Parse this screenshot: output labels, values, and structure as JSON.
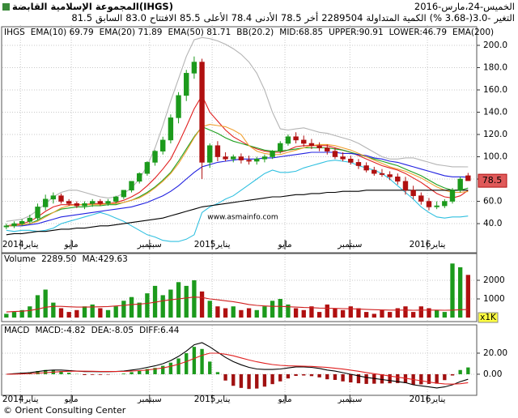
{
  "header": {
    "title": "المجموعة الإسلامية القابضة(IHGS)",
    "date": "الخميس-24،مارس-2016",
    "fields": [
      {
        "label": "التغير",
        "value": "-3.0(-3.68 %)"
      },
      {
        "label": "الكمية المتداولة",
        "value": "2289504"
      },
      {
        "label": "أخر",
        "value": "78.5"
      },
      {
        "label": "الأدنى",
        "value": "78.4"
      },
      {
        "label": "الأعلى",
        "value": "85.5"
      },
      {
        "label": "الافتتاح",
        "value": "83.0"
      },
      {
        "label": "السابق",
        "value": "81.5"
      }
    ]
  },
  "chart_data": [
    {
      "type": "candlestick",
      "watermark": "www.asmainfo.com",
      "grid": true,
      "up_color": "#1c9a1c",
      "down_color": "#b01010",
      "legend_extra": [
        {
          "text": "IHGS",
          "color": "#000000"
        },
        {
          "text": "BB(20.2)",
          "color": "#e89a20"
        }
      ],
      "xlim": [
        -0.5,
        60
      ],
      "ylim": [
        25.5,
        216.7
      ],
      "xticks": [
        {
          "value": 1.8,
          "label": "يناير2014"
        },
        {
          "value": 8.3,
          "label": "مايو"
        },
        {
          "value": 18.3,
          "label": "سبتمبر"
        },
        {
          "value": 26.3,
          "label": "يناير2015"
        },
        {
          "value": 35.6,
          "label": "مايو"
        },
        {
          "value": 43.9,
          "label": "سبتمبر"
        },
        {
          "value": 53.8,
          "label": "يناير2016"
        }
      ],
      "yticks": [
        {
          "value": 200,
          "label": "200.0"
        },
        {
          "value": 180,
          "label": "180.0"
        },
        {
          "value": 160,
          "label": "160.0"
        },
        {
          "value": 140,
          "label": "140.0"
        },
        {
          "value": 120,
          "label": "120.0"
        },
        {
          "value": 100,
          "label": "100.0"
        },
        {
          "value": 80,
          "label": "80.0"
        },
        {
          "value": 60,
          "label": "60.0"
        },
        {
          "value": 40,
          "label": "40.0"
        }
      ],
      "open": [
        37,
        38,
        40,
        42,
        45,
        55,
        62,
        65,
        60,
        58,
        56,
        58,
        60,
        58,
        60,
        64,
        70,
        78,
        85,
        95,
        105,
        115,
        135,
        155,
        175,
        185,
        95,
        110,
        100,
        98,
        100,
        97,
        96,
        98,
        100,
        105,
        112,
        118,
        115,
        112,
        110,
        108,
        105,
        100,
        98,
        95,
        92,
        88,
        85,
        84,
        82,
        78,
        70,
        65,
        60,
        55,
        56,
        60,
        70,
        83
      ],
      "high": [
        40,
        42,
        44,
        48,
        58,
        66,
        68,
        67,
        62,
        60,
        60,
        62,
        62,
        62,
        65,
        70,
        78,
        86,
        96,
        106,
        118,
        138,
        158,
        178,
        190,
        188,
        112,
        114,
        104,
        102,
        103,
        101,
        100,
        102,
        106,
        114,
        120,
        122,
        119,
        116,
        113,
        111,
        108,
        104,
        101,
        98,
        95,
        91,
        89,
        87,
        85,
        82,
        74,
        68,
        63,
        60,
        62,
        72,
        82,
        85.5
      ],
      "low": [
        35,
        36,
        38,
        40,
        43,
        52,
        58,
        58,
        56,
        54,
        53,
        55,
        56,
        56,
        58,
        62,
        68,
        76,
        83,
        92,
        102,
        112,
        130,
        150,
        170,
        80,
        90,
        96,
        96,
        95,
        94,
        93,
        93,
        95,
        98,
        103,
        110,
        112,
        109,
        107,
        105,
        102,
        98,
        96,
        93,
        89,
        86,
        83,
        82,
        79,
        75,
        66,
        62,
        57,
        52,
        53,
        54,
        58,
        68,
        78.4
      ],
      "close": [
        38,
        40,
        42,
        45,
        55,
        62,
        65,
        60,
        58,
        56,
        58,
        60,
        58,
        60,
        64,
        70,
        78,
        85,
        95,
        105,
        115,
        135,
        155,
        175,
        185,
        95,
        110,
        100,
        98,
        100,
        97,
        96,
        98,
        100,
        105,
        112,
        118,
        115,
        112,
        110,
        108,
        105,
        100,
        98,
        95,
        92,
        88,
        85,
        84,
        82,
        78,
        70,
        65,
        60,
        55,
        56,
        60,
        70,
        80,
        78.5
      ],
      "series": [
        {
          "name": "EMA(10) 69.79",
          "color": "#e02020",
          "values": [
            38,
            39,
            40,
            42,
            46,
            51,
            55,
            57,
            57,
            57,
            57,
            58,
            58,
            58,
            59,
            61,
            64,
            68,
            74,
            81,
            89,
            98,
            112,
            127,
            143,
            155,
            140,
            132,
            124,
            118,
            114,
            110,
            107,
            105,
            104,
            104,
            106,
            109,
            110,
            110,
            110,
            110,
            108,
            106,
            104,
            101,
            98,
            95,
            92,
            90,
            88,
            85,
            81,
            77,
            72,
            67,
            64,
            63,
            65,
            69.79
          ]
        },
        {
          "name": "EMA(20) 71.89",
          "color": "#20a020",
          "values": [
            38,
            38,
            39,
            40,
            43,
            47,
            50,
            53,
            54,
            55,
            55,
            56,
            56,
            57,
            57,
            59,
            61,
            64,
            68,
            73,
            79,
            86,
            96,
            107,
            118,
            127,
            124,
            121,
            117,
            114,
            112,
            110,
            108,
            106,
            105,
            105,
            106,
            107,
            108,
            108,
            108,
            108,
            107,
            106,
            104,
            102,
            100,
            98,
            96,
            94,
            92,
            89,
            86,
            83,
            79,
            75,
            72,
            70,
            70,
            71.89
          ]
        },
        {
          "name": "EMA(50) 81.71",
          "color": "#2020e0",
          "values": [
            38,
            38,
            38,
            39,
            40,
            42,
            44,
            46,
            47,
            48,
            49,
            50,
            51,
            52,
            53,
            54,
            55,
            57,
            59,
            62,
            65,
            69,
            74,
            80,
            86,
            91,
            93,
            95,
            96,
            97,
            98,
            98,
            98,
            99,
            99,
            100,
            101,
            102,
            103,
            104,
            104,
            104,
            104,
            103,
            103,
            102,
            101,
            99,
            98,
            96,
            95,
            93,
            91,
            89,
            87,
            85,
            83,
            82,
            82,
            81.71
          ]
        },
        {
          "name": "MID:68.85",
          "color": "#f0a030",
          "values": [
            38,
            38,
            39,
            40,
            42,
            46,
            50,
            54,
            56,
            57,
            57,
            57,
            57,
            58,
            58,
            59,
            61,
            63,
            67,
            72,
            78,
            85,
            94,
            105,
            117,
            127,
            129,
            128,
            127,
            124,
            120,
            110,
            105,
            103,
            102,
            102,
            104,
            106,
            108,
            110,
            111,
            111,
            110,
            108,
            106,
            103,
            100,
            97,
            94,
            91,
            89,
            87,
            84,
            81,
            77,
            73,
            70,
            68,
            68,
            68.85
          ]
        },
        {
          "name": "UPPER:90.91",
          "color": "#b4b4b4",
          "values": [
            42,
            43,
            44,
            47,
            52,
            58,
            64,
            68,
            70,
            70,
            68,
            66,
            64,
            63,
            64,
            67,
            72,
            80,
            92,
            108,
            128,
            150,
            170,
            190,
            205,
            207,
            206,
            204,
            201,
            197,
            192,
            185,
            175,
            160,
            140,
            125,
            124,
            125,
            126,
            124,
            122,
            121,
            119,
            117,
            115,
            112,
            108,
            104,
            100,
            98,
            98,
            99,
            99,
            97,
            95,
            93,
            92,
            91,
            91,
            90.91
          ]
        },
        {
          "name": "LOWER:46.79",
          "color": "#30c0e0",
          "values": [
            34,
            33,
            34,
            34,
            33,
            34,
            36,
            40,
            42,
            44,
            46,
            48,
            50,
            48,
            45,
            42,
            38,
            34,
            30,
            28,
            25,
            24,
            24,
            26,
            30,
            50,
            55,
            58,
            62,
            65,
            70,
            75,
            80,
            85,
            88,
            86,
            86,
            87,
            90,
            92,
            94,
            96,
            97,
            96,
            95,
            92,
            90,
            88,
            85,
            80,
            74,
            68,
            62,
            55,
            50,
            46,
            45,
            46,
            46,
            46.79
          ]
        },
        {
          "name": "EMA(200)",
          "color": "#000000",
          "values": [
            30,
            31,
            31,
            32,
            33,
            33,
            34,
            35,
            35,
            36,
            36,
            37,
            38,
            38,
            39,
            40,
            41,
            42,
            43,
            44,
            45,
            47,
            49,
            51,
            53,
            55,
            56,
            57,
            58,
            59,
            60,
            61,
            62,
            63,
            64,
            64,
            65,
            66,
            66,
            67,
            67,
            68,
            68,
            69,
            69,
            69,
            70,
            70,
            70,
            70,
            70,
            70,
            70,
            70,
            70,
            70,
            70,
            70,
            70,
            70
          ]
        }
      ]
    },
    {
      "type": "volume",
      "title": "Volume",
      "legend_value": "2289.50",
      "unit": "x1K",
      "grid": true,
      "xlim": [
        -0.5,
        60
      ],
      "ylim": [
        -174,
        3304
      ],
      "yticks": [
        1000,
        2000
      ],
      "values": [
        200,
        300,
        400,
        600,
        1200,
        1500,
        800,
        500,
        300,
        400,
        600,
        700,
        500,
        400,
        600,
        900,
        1100,
        800,
        1300,
        1700,
        1200,
        1500,
        1900,
        1700,
        2000,
        1400,
        900,
        600,
        500,
        600,
        400,
        500,
        400,
        600,
        900,
        1000,
        700,
        500,
        400,
        600,
        300,
        700,
        500,
        400,
        600,
        500,
        300,
        200,
        400,
        300,
        500,
        600,
        300,
        600,
        500,
        400,
        300,
        2900,
        2700,
        2289.5
      ],
      "ma": {
        "name": "MA:429.63",
        "color": "#d02020",
        "values": [
          300,
          320,
          340,
          380,
          450,
          550,
          600,
          600,
          580,
          560,
          560,
          570,
          580,
          590,
          620,
          650,
          700,
          720,
          760,
          820,
          900,
          950,
          1000,
          1050,
          1100,
          1080,
          1000,
          950,
          900,
          850,
          780,
          700,
          650,
          620,
          600,
          600,
          580,
          560,
          540,
          530,
          510,
          500,
          490,
          480,
          470,
          460,
          440,
          420,
          410,
          400,
          400,
          400,
          390,
          400,
          400,
          400,
          390,
          400,
          420,
          429.63
        ]
      }
    },
    {
      "type": "macd",
      "title": "MACD",
      "grid": true,
      "up_color": "#1c9a1c",
      "down_color": "#a01010",
      "xlim": [
        -0.5,
        60
      ],
      "ylim": [
        -18.5,
        44.6
      ],
      "xticks": [
        {
          "value": 1.8,
          "label": "يناير2014"
        },
        {
          "value": 8.3,
          "label": "مايو"
        },
        {
          "value": 18.3,
          "label": "سبتمبر"
        },
        {
          "value": 26.3,
          "label": "يناير2015"
        },
        {
          "value": 35.6,
          "label": "مايو"
        },
        {
          "value": 43.9,
          "label": "سبتمبر"
        },
        {
          "value": 53.8,
          "label": "يناير2016"
        }
      ],
      "yticks": [
        {
          "value": 20,
          "label": "20.00"
        },
        {
          "value": 0,
          "label": "0.00"
        }
      ],
      "series": [
        {
          "name": "MACD:-4.82",
          "color": "#000000",
          "values": [
            0,
            0.5,
            1,
            1.5,
            2.5,
            3.5,
            4,
            4,
            3.5,
            3,
            2.5,
            2.5,
            2.4,
            2.4,
            2.6,
            3,
            4,
            5,
            6.5,
            8,
            10,
            13,
            17,
            22,
            28,
            30,
            26,
            21,
            16,
            12,
            9,
            6.5,
            5,
            4.5,
            4.5,
            5,
            6,
            7,
            7,
            6.5,
            5.5,
            4,
            3,
            1.5,
            0,
            -1.5,
            -3,
            -4,
            -5,
            -6,
            -7,
            -8,
            -10,
            -11,
            -12,
            -13,
            -12,
            -10,
            -7,
            -4.82
          ]
        },
        {
          "name": "DEA:-8.05",
          "color": "#e02020",
          "values": [
            0,
            0.1,
            0.3,
            0.6,
            1,
            1.5,
            2,
            2.5,
            2.8,
            2.9,
            2.9,
            2.8,
            2.7,
            2.6,
            2.6,
            2.7,
            3,
            3.4,
            4,
            5,
            6,
            7.5,
            9.5,
            12,
            15,
            18,
            20,
            20,
            19,
            17.5,
            15.5,
            13.5,
            11.8,
            10.4,
            9.2,
            8.4,
            8,
            7.8,
            7.6,
            7.4,
            7,
            6.4,
            5.7,
            4.9,
            3.9,
            2.8,
            1.6,
            0.5,
            -0.6,
            -1.7,
            -2.8,
            -3.8,
            -5,
            -6.2,
            -7.4,
            -8.5,
            -9.2,
            -9.4,
            -9,
            -8.05
          ]
        }
      ],
      "histogram": {
        "name": "DIFF:6.44",
        "values": [
          0,
          0.8,
          1.4,
          1.8,
          3,
          4,
          4,
          3,
          1.4,
          0.2,
          -0.8,
          -0.6,
          -0.6,
          -0.4,
          0,
          0.6,
          2,
          3.2,
          5,
          6,
          8,
          11,
          15,
          20,
          26,
          24,
          12,
          2,
          -6,
          -11,
          -13,
          -14,
          -13.6,
          -11.8,
          -9.4,
          -6.8,
          -4,
          -1.6,
          -1.2,
          -1.8,
          -3,
          -4.8,
          -5.4,
          -6.8,
          -7.8,
          -8.6,
          -9.2,
          -9,
          -8.8,
          -8.6,
          -8.4,
          -8.4,
          -10,
          -9.6,
          -9.2,
          -9,
          -5.6,
          -1.2,
          4,
          6.44
        ]
      }
    }
  ],
  "footer": "© Orient Consulting Center"
}
